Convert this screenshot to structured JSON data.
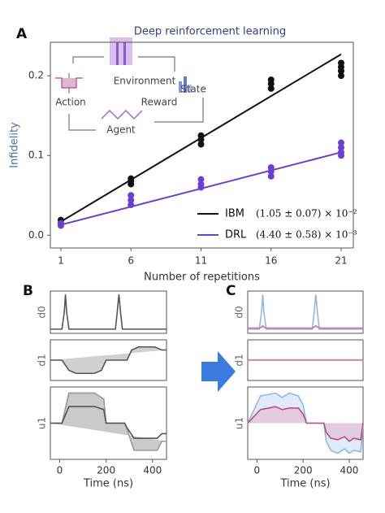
{
  "chart_data": [
    {
      "type": "scatter",
      "panel_label": "A",
      "title": "Deep reinforcement learning",
      "xlabel": "Number of repetitions",
      "ylabel": "Infidelity",
      "inset_labels": [
        "Environment",
        "State",
        "Reward",
        "Agent",
        "Action"
      ],
      "xlim": [
        0.25,
        21.87
      ],
      "xticks": [
        1,
        6,
        11,
        16,
        21
      ],
      "ylim": [
        -0.016,
        0.242
      ],
      "yticks": [
        {
          "value": 0,
          "label": "0.0"
        },
        0.1,
        0.2
      ],
      "legend": "lower right",
      "series": [
        {
          "name": "IBM",
          "color": "#111111",
          "fit_label": "(1.05 ± 0.07) × 10⁻²",
          "x": [
            1,
            1,
            6,
            6,
            6,
            11,
            11,
            11,
            16,
            16,
            16,
            21,
            21,
            21,
            21
          ],
          "values": [
            0.015,
            0.019,
            0.064,
            0.068,
            0.071,
            0.114,
            0.12,
            0.125,
            0.184,
            0.19,
            0.195,
            0.2,
            0.206,
            0.211,
            0.216
          ],
          "fit": {
            "x": [
              1,
              21
            ],
            "values": [
              0.017,
              0.227
            ]
          }
        },
        {
          "name": "DRL",
          "color": "#6a3fd6",
          "fit_label": "(4.40 ± 0.58) × 10⁻³",
          "x": [
            1,
            1,
            6,
            6,
            6,
            11,
            11,
            11,
            16,
            16,
            16,
            21,
            21,
            21,
            21
          ],
          "values": [
            0.012,
            0.015,
            0.038,
            0.044,
            0.05,
            0.06,
            0.064,
            0.07,
            0.074,
            0.08,
            0.085,
            0.1,
            0.104,
            0.11,
            0.116
          ],
          "fit": {
            "x": [
              1,
              21
            ],
            "values": [
              0.013,
              0.104
            ]
          }
        }
      ]
    },
    {
      "type": "line",
      "panel_label": "B",
      "ylabel": "d0",
      "xlim": [
        -40,
        460
      ],
      "ylim": [
        -0.12,
        1.1
      ],
      "x": [
        -40,
        10,
        20,
        25,
        30,
        40,
        240,
        248,
        255,
        262,
        270,
        460
      ],
      "series": [
        {
          "color": "#555555",
          "values": [
            0,
            0,
            0.5,
            1,
            0.5,
            0,
            0,
            0.5,
            1,
            0.5,
            0,
            0
          ]
        }
      ]
    },
    {
      "type": "line",
      "ylabel": "d1",
      "xlim": [
        -40,
        460
      ],
      "ylim": [
        -1,
        1
      ],
      "x": [
        -40,
        10,
        40,
        70,
        150,
        180,
        200,
        290,
        310,
        340,
        410,
        440,
        460
      ],
      "series": [
        {
          "color": "#555555",
          "fill": "#9a9a9a",
          "values": [
            0,
            0,
            -0.5,
            -0.65,
            -0.65,
            -0.5,
            0,
            0,
            0.5,
            0.65,
            0.65,
            0.5,
            0.5
          ]
        }
      ]
    },
    {
      "type": "line",
      "ylabel": "u1",
      "xlim": [
        -40,
        460
      ],
      "ylim": [
        -1.2,
        1.2
      ],
      "xticks": [
        0,
        200,
        400
      ],
      "xlabel": "Time (ns)",
      "x": [
        -40,
        10,
        40,
        150,
        190,
        200,
        280,
        290,
        320,
        420,
        440,
        460
      ],
      "series": [
        {
          "color": "#999999",
          "fill": "#8a8a8a",
          "values": [
            0,
            0,
            1.0,
            1.0,
            0.8,
            0,
            0,
            -0.2,
            -0.9,
            -0.9,
            -0.6,
            -0.6
          ]
        },
        {
          "color": "#555555",
          "values": [
            0,
            0,
            0.55,
            0.55,
            0.45,
            0,
            0,
            -0.15,
            -0.5,
            -0.5,
            -0.35,
            -0.35
          ]
        }
      ]
    },
    {
      "type": "line",
      "panel_label": "C",
      "ylabel": "d0",
      "xlim": [
        -40,
        460
      ],
      "ylim": [
        -0.12,
        1.1
      ],
      "x": [
        -40,
        10,
        20,
        25,
        30,
        40,
        240,
        248,
        255,
        262,
        270,
        460
      ],
      "series": [
        {
          "color": "#8fb8e8",
          "values": [
            0,
            0,
            0.5,
            1,
            0.5,
            0,
            0,
            0.5,
            1,
            0.5,
            0,
            0
          ]
        },
        {
          "color": "#d0709a",
          "values": [
            0.03,
            0.03,
            0.06,
            0.1,
            0.06,
            0.03,
            0.03,
            0.06,
            0.1,
            0.06,
            0.03,
            0.03
          ]
        }
      ]
    },
    {
      "type": "line",
      "ylabel": "d1",
      "xlim": [
        -40,
        460
      ],
      "ylim": [
        -1,
        1
      ],
      "x": [
        -40,
        460
      ],
      "series": [
        {
          "color": "#8fb8e8",
          "values": [
            0.02,
            0.02
          ]
        },
        {
          "color": "#d0709a",
          "values": [
            0,
            0
          ]
        }
      ]
    },
    {
      "type": "line",
      "ylabel": "u1",
      "xlim": [
        -40,
        460
      ],
      "ylim": [
        -1.2,
        1.2
      ],
      "xticks": [
        0,
        200,
        400
      ],
      "xlabel": "Time (ns)",
      "x": [
        -40,
        15,
        50,
        80,
        110,
        140,
        180,
        200,
        215,
        290,
        300,
        320,
        350,
        380,
        400,
        420,
        450,
        460
      ],
      "series": [
        {
          "color": "#8fb8e8",
          "fill": "#b9d3f2",
          "values": [
            0,
            0.9,
            0.95,
            1.0,
            0.85,
            1.0,
            0.9,
            0.6,
            0,
            0,
            -0.6,
            -0.9,
            -1.0,
            -0.85,
            -1.0,
            -0.9,
            -0.95,
            0
          ]
        },
        {
          "color": "#c04a7e",
          "fill": "#e2a3bf",
          "values": [
            0,
            0.45,
            0.5,
            0.55,
            0.45,
            0.5,
            0.5,
            0.3,
            0,
            0,
            -0.3,
            -0.5,
            -0.55,
            -0.45,
            -0.6,
            -0.5,
            -0.55,
            0
          ]
        }
      ]
    }
  ]
}
